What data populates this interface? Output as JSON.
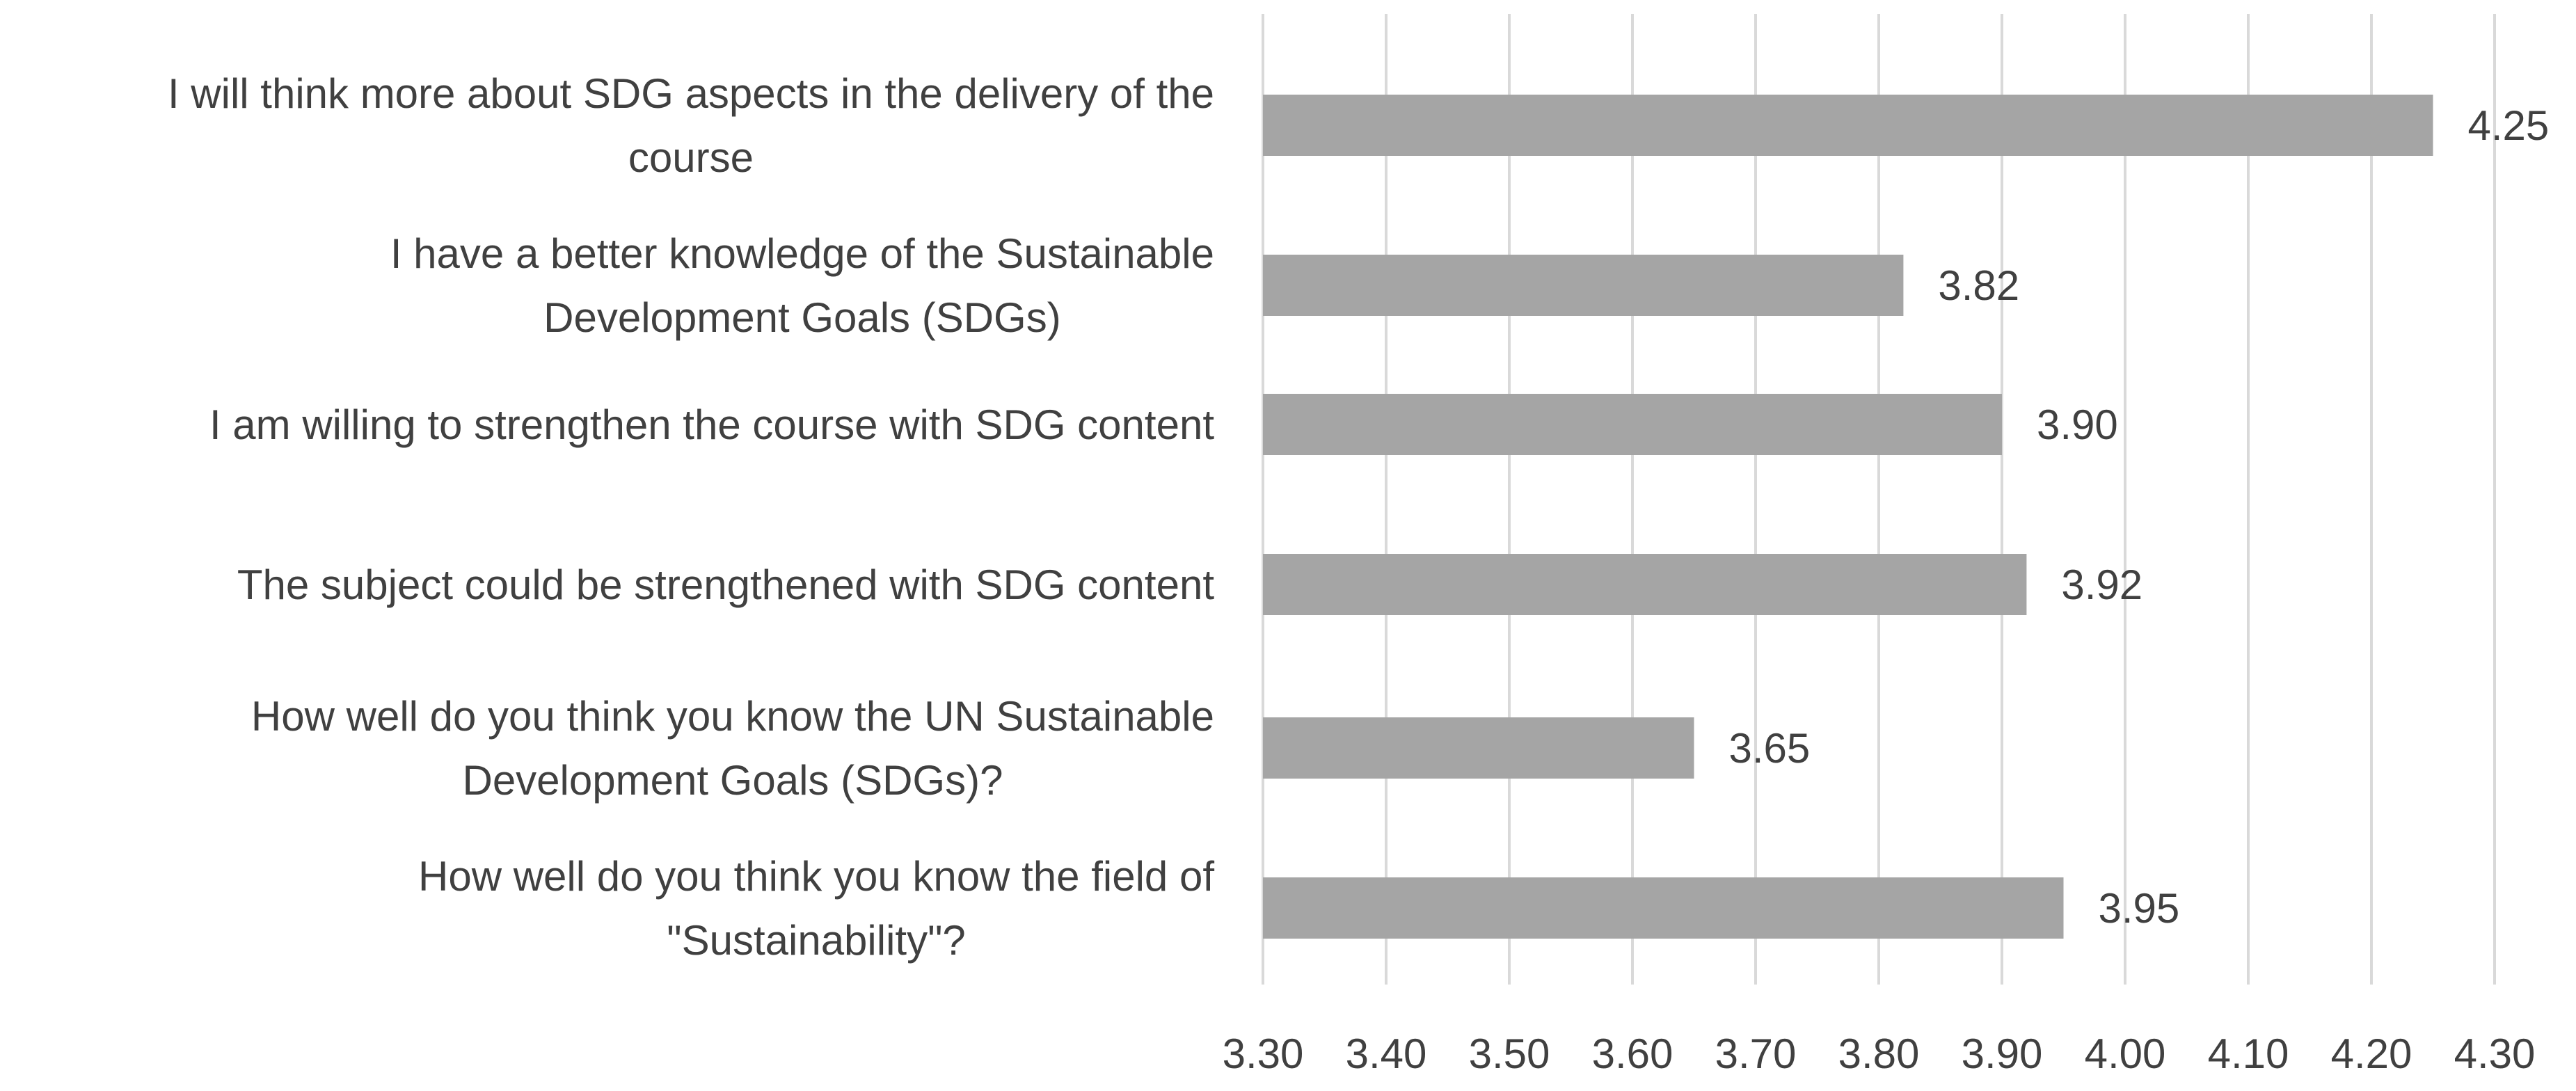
{
  "chart_data": {
    "type": "bar",
    "orientation": "horizontal",
    "categories": [
      [
        "I will think more about SDG aspects in the delivery of the",
        "course"
      ],
      [
        "I have a better knowledge of the Sustainable",
        "Development Goals (SDGs)"
      ],
      [
        "I am willing to strengthen the course with SDG content"
      ],
      [
        "The subject could be strengthened with SDG content"
      ],
      [
        "How well do you think you know the UN Sustainable",
        "Development Goals (SDGs)?"
      ],
      [
        "How well do you think you know the field of",
        "\"Sustainability\"?"
      ]
    ],
    "values": [
      4.25,
      3.82,
      3.9,
      3.92,
      3.65,
      3.95
    ],
    "value_labels": [
      "4.25",
      "3.82",
      "3.90",
      "3.92",
      "3.65",
      "3.95"
    ],
    "xlim": [
      3.3,
      4.3
    ],
    "xticks": [
      3.3,
      3.4,
      3.5,
      3.6,
      3.7,
      3.8,
      3.9,
      4.0,
      4.1,
      4.2,
      4.3
    ],
    "xtick_labels": [
      "3.30",
      "3.40",
      "3.50",
      "3.60",
      "3.70",
      "3.80",
      "3.90",
      "4.00",
      "4.10",
      "4.20",
      "4.30"
    ],
    "title": "",
    "xlabel": "",
    "ylabel": "",
    "grid": "vertical",
    "legend": "none",
    "colors": {
      "bar": "#a5a5a5",
      "grid": "#d9d9d9",
      "text": "#404040"
    }
  }
}
